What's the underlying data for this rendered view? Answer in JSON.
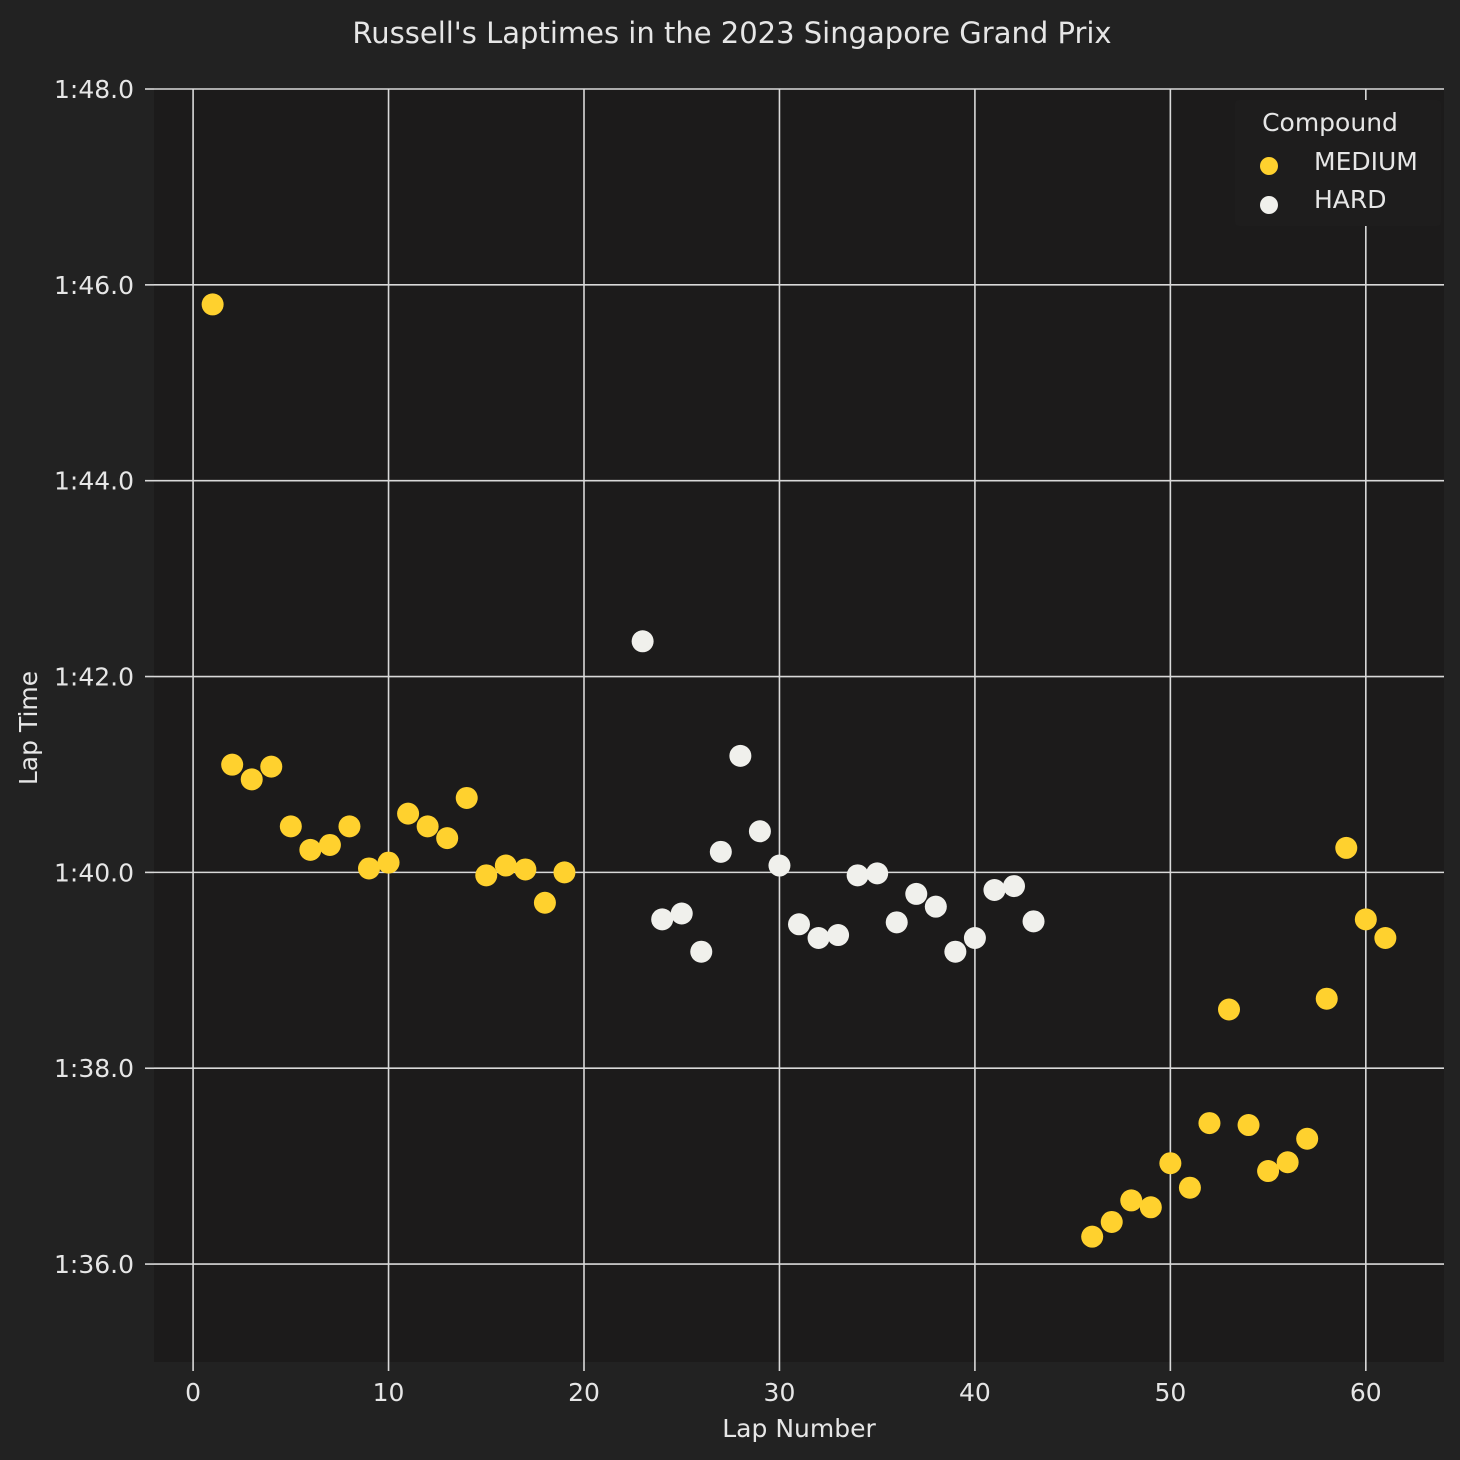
{
  "chart_data": {
    "type": "scatter",
    "title": "Russell's Laptimes in the 2023 Singapore Grand Prix",
    "xlabel": "Lap Number",
    "ylabel": "Lap Time",
    "xlim": [
      -2,
      64
    ],
    "ylim": [
      95,
      108
    ],
    "x_ticks": [
      0,
      10,
      20,
      30,
      40,
      50,
      60
    ],
    "y_ticks": [
      96,
      98,
      100,
      102,
      104,
      106,
      108
    ],
    "y_tick_labels": [
      "1:36.0",
      "1:38.0",
      "1:40.0",
      "1:42.0",
      "1:44.0",
      "1:46.0",
      "1:48.0"
    ],
    "grid": true,
    "legend": {
      "title": "Compound",
      "position": "top-right"
    },
    "series": [
      {
        "name": "MEDIUM",
        "color": "#ffd12e",
        "points": [
          [
            1,
            105.8
          ],
          [
            2,
            101.1
          ],
          [
            3,
            100.95
          ],
          [
            4,
            101.08
          ],
          [
            5,
            100.47
          ],
          [
            6,
            100.23
          ],
          [
            7,
            100.28
          ],
          [
            8,
            100.47
          ],
          [
            9,
            100.04
          ],
          [
            10,
            100.1
          ],
          [
            11,
            100.6
          ],
          [
            12,
            100.47
          ],
          [
            13,
            100.35
          ],
          [
            14,
            100.76
          ],
          [
            15,
            99.97
          ],
          [
            16,
            100.07
          ],
          [
            17,
            100.03
          ],
          [
            18,
            99.69
          ],
          [
            19,
            100.0
          ],
          [
            46,
            96.28
          ],
          [
            47,
            96.43
          ],
          [
            48,
            96.65
          ],
          [
            49,
            96.58
          ],
          [
            50,
            97.03
          ],
          [
            51,
            96.78
          ],
          [
            52,
            97.44
          ],
          [
            53,
            98.6
          ],
          [
            54,
            97.42
          ],
          [
            55,
            96.95
          ],
          [
            56,
            97.04
          ],
          [
            57,
            97.28
          ],
          [
            58,
            98.71
          ],
          [
            59,
            100.25
          ],
          [
            60,
            99.52
          ],
          [
            61,
            99.33
          ]
        ]
      },
      {
        "name": "HARD",
        "color": "#f0f0ec",
        "points": [
          [
            23,
            102.36
          ],
          [
            24,
            99.52
          ],
          [
            25,
            99.58
          ],
          [
            26,
            99.19
          ],
          [
            27,
            100.21
          ],
          [
            28,
            101.19
          ],
          [
            29,
            100.42
          ],
          [
            30,
            100.07
          ],
          [
            31,
            99.47
          ],
          [
            32,
            99.33
          ],
          [
            33,
            99.36
          ],
          [
            34,
            99.97
          ],
          [
            35,
            99.99
          ],
          [
            36,
            99.49
          ],
          [
            37,
            99.78
          ],
          [
            38,
            99.65
          ],
          [
            39,
            99.19
          ],
          [
            40,
            99.33
          ],
          [
            41,
            99.82
          ],
          [
            42,
            99.86
          ],
          [
            43,
            99.5
          ]
        ]
      }
    ]
  }
}
